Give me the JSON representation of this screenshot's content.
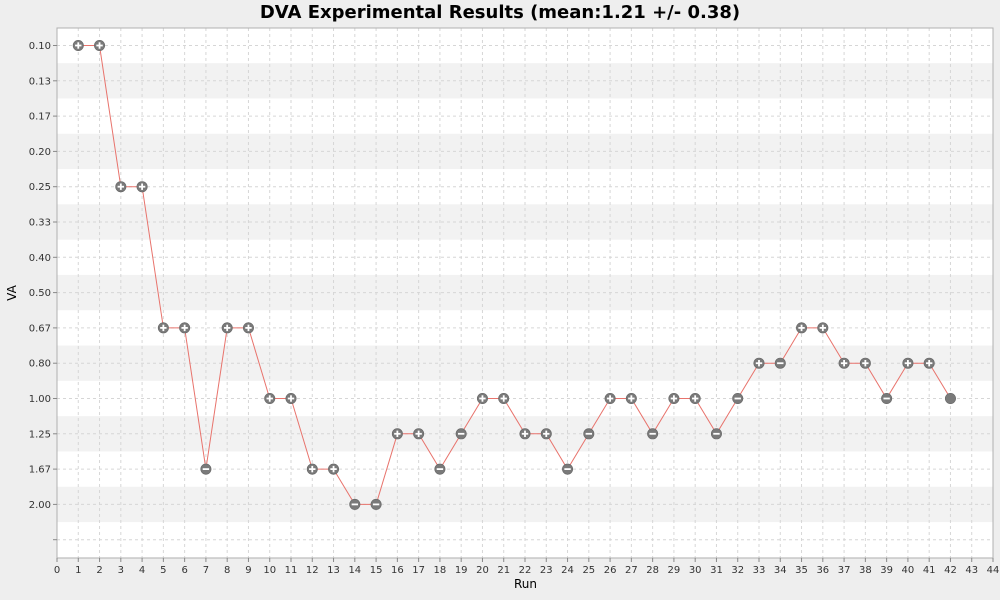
{
  "chart_data": {
    "type": "line",
    "title": "DVA Experimental Results (mean:1.21 +/- 0.38)",
    "xlabel": "Run",
    "ylabel": "VA",
    "xlim": [
      0,
      44
    ],
    "x_ticks": [
      0,
      1,
      2,
      3,
      4,
      5,
      6,
      7,
      8,
      9,
      10,
      11,
      12,
      13,
      14,
      15,
      16,
      17,
      18,
      19,
      20,
      21,
      22,
      23,
      24,
      25,
      26,
      27,
      28,
      29,
      30,
      31,
      32,
      33,
      34,
      35,
      36,
      37,
      38,
      39,
      40,
      41,
      42,
      43,
      44
    ],
    "y_levels": [
      "0.10",
      "0.13",
      "0.17",
      "0.20",
      "0.25",
      "0.33",
      "0.40",
      "0.50",
      "0.67",
      "0.80",
      "1.00",
      "1.25",
      "1.67",
      "2.00"
    ],
    "grid": true,
    "alternating_bands": true,
    "series": [
      {
        "line_color": "#e8736c",
        "x": [
          1,
          2,
          3,
          4,
          5,
          6,
          7,
          8,
          9,
          10,
          11,
          12,
          13,
          14,
          15,
          16,
          17,
          18,
          19,
          20,
          21,
          22,
          23,
          24,
          25,
          26,
          27,
          28,
          29,
          30,
          31,
          32,
          33,
          34,
          35,
          36,
          37,
          38,
          39,
          40,
          41,
          42
        ],
        "y": [
          0.1,
          0.1,
          0.25,
          0.25,
          0.67,
          0.67,
          1.67,
          0.67,
          0.67,
          1.0,
          1.0,
          1.67,
          1.67,
          2.0,
          2.0,
          1.25,
          1.25,
          1.67,
          1.25,
          1.0,
          1.0,
          1.25,
          1.25,
          1.67,
          1.25,
          1.0,
          1.0,
          1.25,
          1.0,
          1.0,
          1.25,
          1.0,
          0.8,
          0.8,
          0.67,
          0.67,
          0.8,
          0.8,
          1.0,
          0.8,
          0.8,
          1.0
        ],
        "markers": [
          "plus",
          "plus",
          "plus",
          "plus",
          "plus",
          "plus",
          "minus",
          "plus",
          "plus",
          "plus",
          "plus",
          "plus",
          "plus",
          "minus",
          "minus",
          "plus",
          "plus",
          "minus",
          "minus",
          "plus",
          "plus",
          "plus",
          "plus",
          "minus",
          "minus",
          "plus",
          "plus",
          "minus",
          "plus",
          "plus",
          "minus",
          "minus",
          "plus",
          "minus",
          "plus",
          "plus",
          "plus",
          "plus",
          "minus",
          "plus",
          "plus",
          "solid"
        ]
      }
    ]
  },
  "colors": {
    "page_background": "#eeeeee",
    "plot_background": "#ffffff",
    "band": "#f2f2f2",
    "grid": "#d6d6d6",
    "marker_fill": "#7a7a7a",
    "marker_symbol": "#ffffff"
  }
}
